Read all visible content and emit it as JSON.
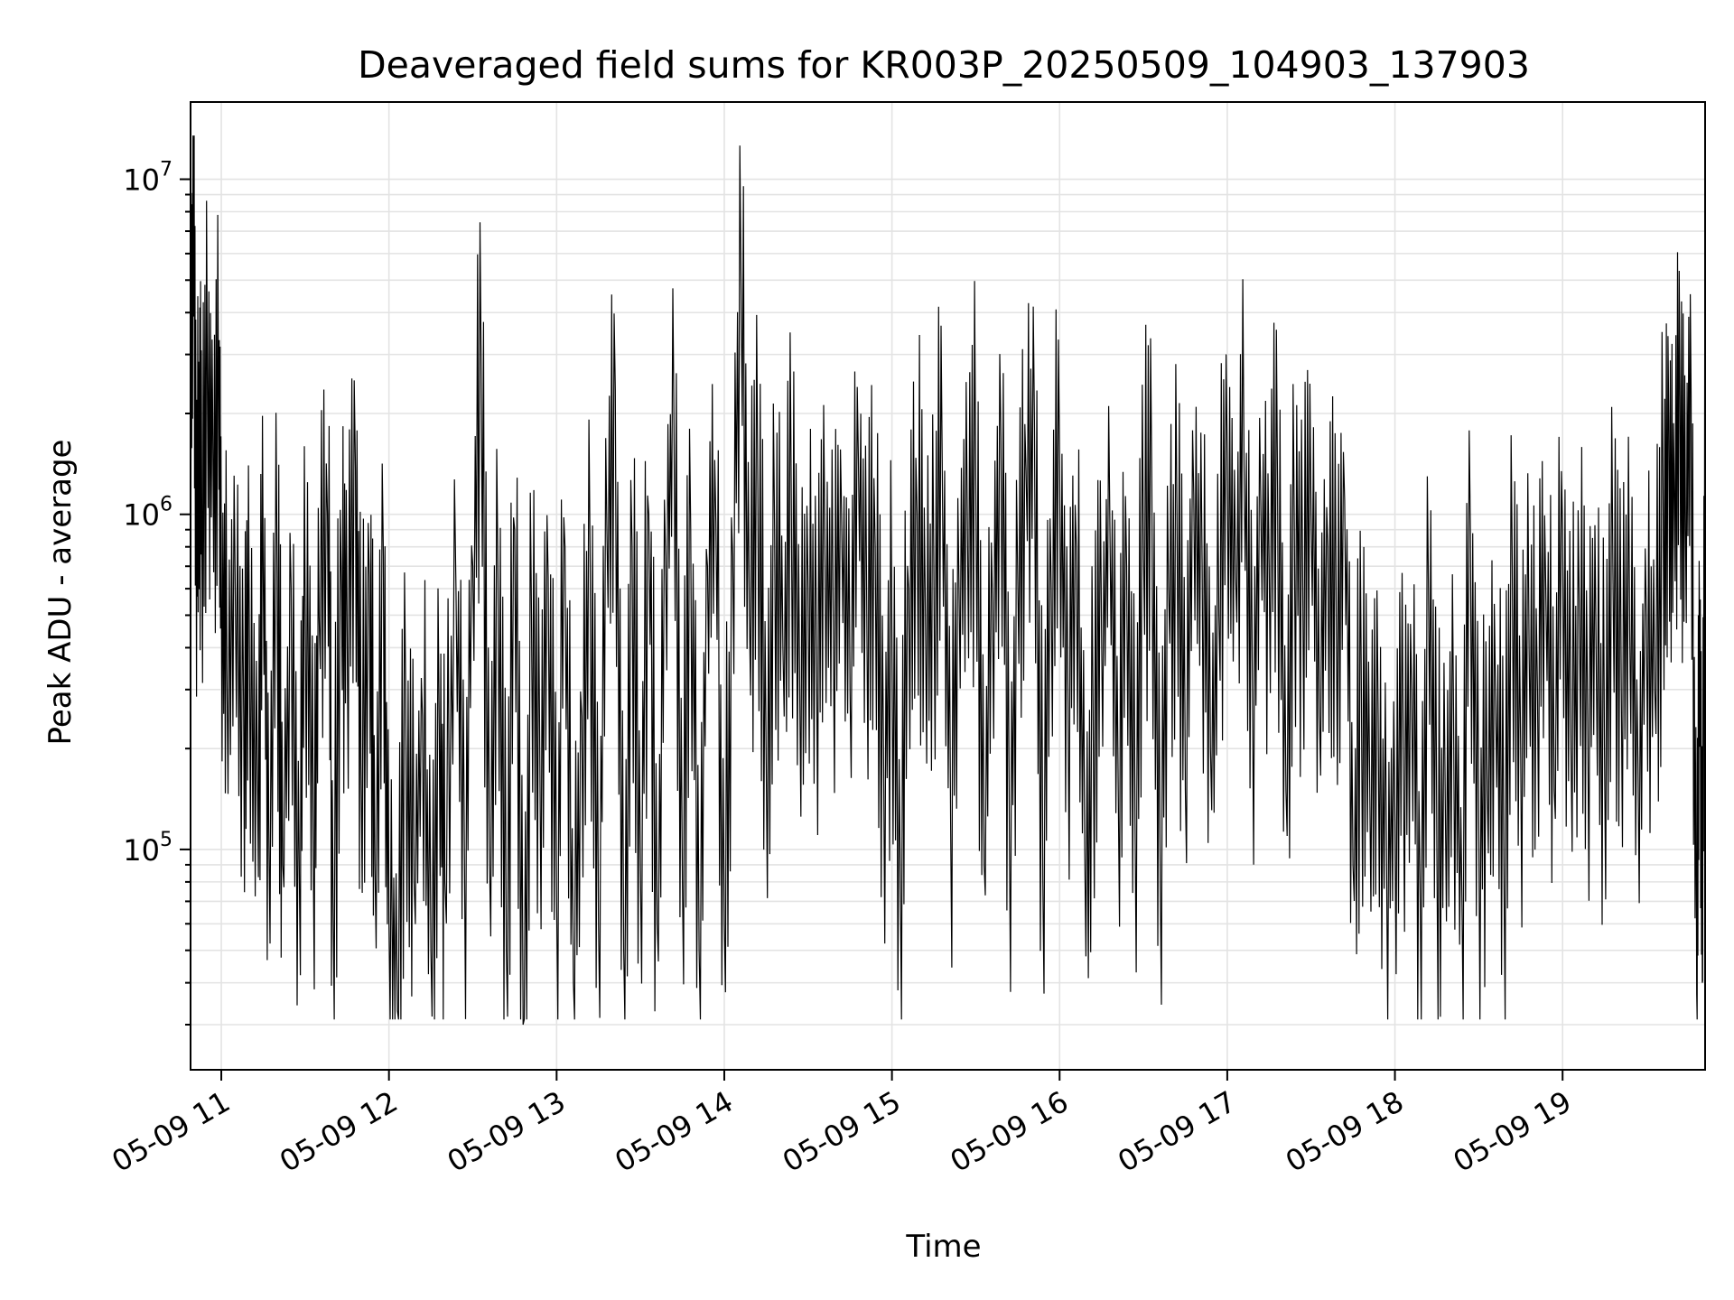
{
  "chart_data": {
    "type": "line",
    "title": "Deaveraged field sums for KR003P_20250509_104903_137903",
    "xlabel": "Time",
    "ylabel": "Peak ADU - average",
    "yscale": "log",
    "grid": "on (major and minor)",
    "colors": {
      "line": "#000000",
      "grid": "#e3e3e3"
    },
    "xlim": [
      "2025-05-09 10:49",
      "2025-05-09 19:51"
    ],
    "ylim": [
      22000,
      17000000
    ],
    "x_ticks": [
      {
        "value": "2025-05-09 11:00",
        "label": "05-09 11"
      },
      {
        "value": "2025-05-09 12:00",
        "label": "05-09 12"
      },
      {
        "value": "2025-05-09 13:00",
        "label": "05-09 13"
      },
      {
        "value": "2025-05-09 14:00",
        "label": "05-09 14"
      },
      {
        "value": "2025-05-09 15:00",
        "label": "05-09 15"
      },
      {
        "value": "2025-05-09 16:00",
        "label": "05-09 16"
      },
      {
        "value": "2025-05-09 17:00",
        "label": "05-09 17"
      },
      {
        "value": "2025-05-09 18:00",
        "label": "05-09 18"
      },
      {
        "value": "2025-05-09 19:00",
        "label": "05-09 19"
      }
    ],
    "y_ticks": [
      {
        "value": 100000,
        "base": "10",
        "exp": "5"
      },
      {
        "value": 1000000,
        "base": "10",
        "exp": "6"
      },
      {
        "value": 10000000,
        "base": "10",
        "exp": "7"
      }
    ],
    "series": [
      {
        "x": [
          "2025-05-09 10:49",
          "2025-05-09 10:50",
          "2025-05-09 10:51",
          "2025-05-09 10:52",
          "2025-05-09 10:53",
          "2025-05-09 10:55",
          "2025-05-09 10:57",
          "2025-05-09 10:59",
          "2025-05-09 11:00",
          "2025-05-09 11:02",
          "2025-05-09 11:05",
          "2025-05-09 11:08",
          "2025-05-09 11:10",
          "2025-05-09 11:13",
          "2025-05-09 11:15",
          "2025-05-09 11:17",
          "2025-05-09 11:20",
          "2025-05-09 11:22",
          "2025-05-09 11:25",
          "2025-05-09 11:28",
          "2025-05-09 11:30",
          "2025-05-09 11:33",
          "2025-05-09 11:35",
          "2025-05-09 11:38",
          "2025-05-09 11:40",
          "2025-05-09 11:43",
          "2025-05-09 11:45",
          "2025-05-09 11:48",
          "2025-05-09 11:50",
          "2025-05-09 11:53",
          "2025-05-09 11:55",
          "2025-05-09 11:58",
          "2025-05-09 12:00",
          "2025-05-09 12:03",
          "2025-05-09 12:06",
          "2025-05-09 12:09",
          "2025-05-09 12:12",
          "2025-05-09 12:15",
          "2025-05-09 12:18",
          "2025-05-09 12:20",
          "2025-05-09 12:24",
          "2025-05-09 12:27",
          "2025-05-09 12:30",
          "2025-05-09 12:33",
          "2025-05-09 12:36",
          "2025-05-09 12:39",
          "2025-05-09 12:42",
          "2025-05-09 12:45",
          "2025-05-09 12:48",
          "2025-05-09 12:51",
          "2025-05-09 12:54",
          "2025-05-09 12:57",
          "2025-05-09 13:00",
          "2025-05-09 13:03",
          "2025-05-09 13:06",
          "2025-05-09 13:09",
          "2025-05-09 13:12",
          "2025-05-09 13:15",
          "2025-05-09 13:18",
          "2025-05-09 13:21",
          "2025-05-09 13:24",
          "2025-05-09 13:27",
          "2025-05-09 13:30",
          "2025-05-09 13:33",
          "2025-05-09 13:36",
          "2025-05-09 13:39",
          "2025-05-09 13:42",
          "2025-05-09 13:45",
          "2025-05-09 13:48",
          "2025-05-09 13:51",
          "2025-05-09 13:54",
          "2025-05-09 13:57",
          "2025-05-09 14:00",
          "2025-05-09 14:03",
          "2025-05-09 14:06",
          "2025-05-09 14:09",
          "2025-05-09 14:12",
          "2025-05-09 14:15",
          "2025-05-09 14:18",
          "2025-05-09 14:21",
          "2025-05-09 14:24",
          "2025-05-09 14:27",
          "2025-05-09 14:30",
          "2025-05-09 14:33",
          "2025-05-09 14:36",
          "2025-05-09 14:39",
          "2025-05-09 14:42",
          "2025-05-09 14:45",
          "2025-05-09 14:48",
          "2025-05-09 14:51",
          "2025-05-09 14:54",
          "2025-05-09 14:57",
          "2025-05-09 15:00",
          "2025-05-09 15:03",
          "2025-05-09 15:06",
          "2025-05-09 15:09",
          "2025-05-09 15:12",
          "2025-05-09 15:15",
          "2025-05-09 15:18",
          "2025-05-09 15:21",
          "2025-05-09 15:24",
          "2025-05-09 15:27",
          "2025-05-09 15:30",
          "2025-05-09 15:33",
          "2025-05-09 15:36",
          "2025-05-09 15:39",
          "2025-05-09 15:42",
          "2025-05-09 15:45",
          "2025-05-09 15:48",
          "2025-05-09 15:51",
          "2025-05-09 15:54",
          "2025-05-09 15:57",
          "2025-05-09 16:00",
          "2025-05-09 16:03",
          "2025-05-09 16:06",
          "2025-05-09 16:09",
          "2025-05-09 16:12",
          "2025-05-09 16:15",
          "2025-05-09 16:18",
          "2025-05-09 16:21",
          "2025-05-09 16:24",
          "2025-05-09 16:27",
          "2025-05-09 16:30",
          "2025-05-09 16:33",
          "2025-05-09 16:36",
          "2025-05-09 16:39",
          "2025-05-09 16:42",
          "2025-05-09 16:45",
          "2025-05-09 16:48",
          "2025-05-09 16:51",
          "2025-05-09 16:54",
          "2025-05-09 16:57",
          "2025-05-09 17:00",
          "2025-05-09 17:03",
          "2025-05-09 17:06",
          "2025-05-09 17:09",
          "2025-05-09 17:12",
          "2025-05-09 17:15",
          "2025-05-09 17:18",
          "2025-05-09 17:21",
          "2025-05-09 17:24",
          "2025-05-09 17:27",
          "2025-05-09 17:30",
          "2025-05-09 17:33",
          "2025-05-09 17:36",
          "2025-05-09 17:39",
          "2025-05-09 17:42",
          "2025-05-09 17:45",
          "2025-05-09 17:48",
          "2025-05-09 17:51",
          "2025-05-09 17:54",
          "2025-05-09 17:57",
          "2025-05-09 18:00",
          "2025-05-09 18:03",
          "2025-05-09 18:06",
          "2025-05-09 18:09",
          "2025-05-09 18:12",
          "2025-05-09 18:15",
          "2025-05-09 18:18",
          "2025-05-09 18:21",
          "2025-05-09 18:24",
          "2025-05-09 18:27",
          "2025-05-09 18:30",
          "2025-05-09 18:33",
          "2025-05-09 18:36",
          "2025-05-09 18:39",
          "2025-05-09 18:42",
          "2025-05-09 18:45",
          "2025-05-09 18:48",
          "2025-05-09 18:51",
          "2025-05-09 18:54",
          "2025-05-09 18:57",
          "2025-05-09 19:00",
          "2025-05-09 19:03",
          "2025-05-09 19:06",
          "2025-05-09 19:09",
          "2025-05-09 19:12",
          "2025-05-09 19:15",
          "2025-05-09 19:18",
          "2025-05-09 19:21",
          "2025-05-09 19:24",
          "2025-05-09 19:27",
          "2025-05-09 19:30",
          "2025-05-09 19:33",
          "2025-05-09 19:36",
          "2025-05-09 19:38",
          "2025-05-09 19:40",
          "2025-05-09 19:42",
          "2025-05-09 19:44",
          "2025-05-09 19:46",
          "2025-05-09 19:48",
          "2025-05-09 19:49",
          "2025-05-09 19:50",
          "2025-05-09 19:51"
        ],
        "y": [
          1200000,
          12000000,
          900000,
          2000000,
          1100000,
          2500000,
          1500000,
          2200000,
          800000,
          350000,
          600000,
          250000,
          500000,
          140000,
          700000,
          120000,
          650000,
          90000,
          600000,
          70000,
          550000,
          80000,
          500000,
          1000000,
          70000,
          600000,
          500000,
          1350000,
          180000,
          650000,
          90000,
          750000,
          60000,
          33000,
          300000,
          80000,
          250000,
          50000,
          220000,
          80000,
          600000,
          100000,
          700000,
          2700000,
          90000,
          650000,
          50000,
          900000,
          30000,
          500000,
          180000,
          650000,
          70000,
          800000,
          40000,
          250000,
          700000,
          60000,
          900000,
          2350000,
          50000,
          800000,
          90000,
          1000000,
          60000,
          750000,
          1850000,
          80000,
          900000,
          50000,
          700000,
          950000,
          60000,
          750000,
          5000000,
          500000,
          1200000,
          180000,
          900000,
          400000,
          1100000,
          300000,
          600000,
          400000,
          800000,
          500000,
          1000000,
          300000,
          1450000,
          500000,
          800000,
          200000,
          420000,
          80000,
          600000,
          1000000,
          500000,
          700000,
          1400000,
          120000,
          600000,
          900000,
          1300000,
          90000,
          550000,
          1700000,
          120000,
          650000,
          1350000,
          1900000,
          80000,
          600000,
          1400000,
          300000,
          800000,
          100000,
          250000,
          450000,
          900000,
          150000,
          700000,
          120000,
          800000,
          1200000,
          80000,
          600000,
          1000000,
          150000,
          1150000,
          700000,
          200000,
          500000,
          1500000,
          650000,
          1400000,
          300000,
          1100000,
          700000,
          1200000,
          150000,
          900000,
          600000,
          1000000,
          250000,
          800000,
          500000,
          1100000,
          90000,
          300000,
          150000,
          250000,
          90000,
          120000,
          200000,
          300000,
          80000,
          600000,
          100000,
          150000,
          250000,
          70000,
          900000,
          120000,
          150000,
          300000,
          90000,
          700000,
          200000,
          400000,
          300000,
          600000,
          150000,
          900000,
          200000,
          500000,
          250000,
          400000,
          200000,
          700000,
          300000,
          450000,
          180000,
          500000,
          300000,
          1000000,
          1900000,
          1100000,
          2200000,
          900000,
          2300000,
          37000,
          500000,
          40000,
          2300000
        ]
      }
    ]
  }
}
